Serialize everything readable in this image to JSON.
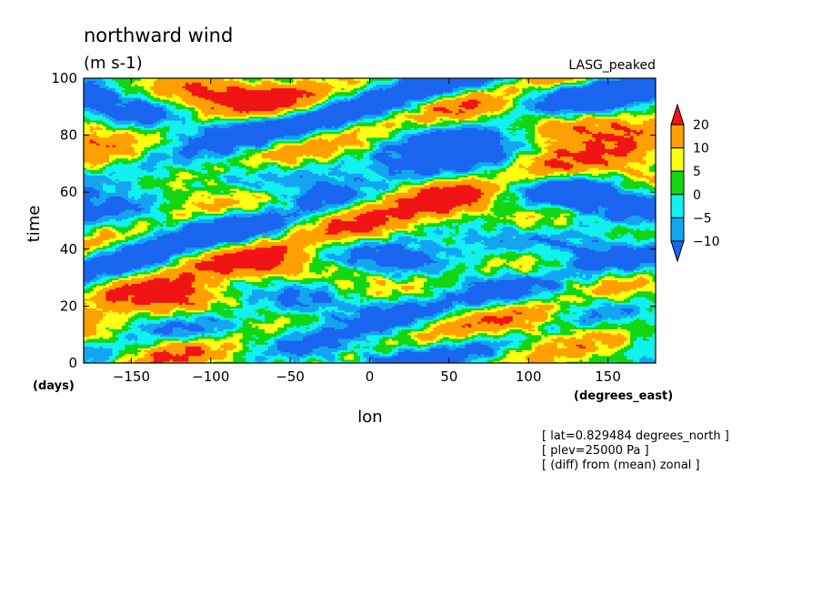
{
  "chart_data": {
    "type": "heatmap",
    "title": "northward wind",
    "units": "(m s-1)",
    "experiment": "LASG_peaked",
    "xlabel": "lon",
    "xunits": "(degrees_east)",
    "ylabel": "time",
    "yunits": "(days)",
    "xlim": [
      -180,
      180
    ],
    "ylim": [
      0,
      100
    ],
    "xticks": [
      -150,
      -100,
      -50,
      0,
      50,
      100,
      150
    ],
    "xtick_labels": [
      "−150",
      "−100",
      "−50",
      "0",
      "50",
      "100",
      "150"
    ],
    "yticks": [
      0,
      20,
      40,
      60,
      80,
      100
    ],
    "ytick_labels": [
      "0",
      "20",
      "40",
      "60",
      "80",
      "100"
    ],
    "colorbar": {
      "levels": [
        -10,
        -5,
        0,
        5,
        10,
        20
      ],
      "labels": [
        "−10",
        "−5",
        "0",
        "5",
        "10",
        "20"
      ],
      "colors": [
        "#1a66f0",
        "#14a5f0",
        "#12f0f0",
        "#12d612",
        "#ffff14",
        "#ffa000",
        "#f01414"
      ],
      "extend": "both"
    },
    "annotations": [
      "[ lat=0.829484 degrees_north ]",
      "[ plev=25000 Pa ]",
      "[ (diff) from (mean) zonal ]"
    ]
  }
}
